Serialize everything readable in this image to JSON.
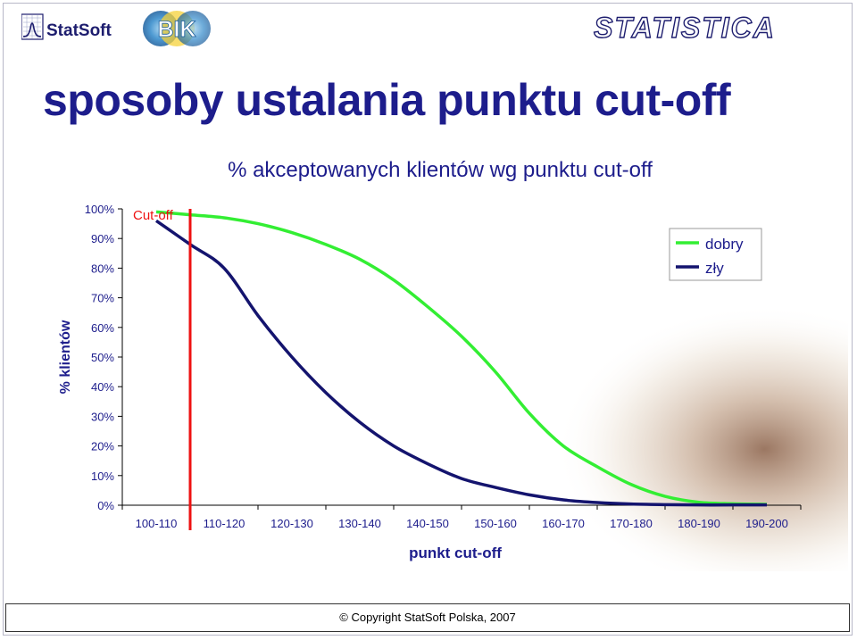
{
  "header": {
    "statsoft_logo": "StatSoft",
    "bik_logo": "BIK",
    "statistica_logo": "STATISTICA"
  },
  "slide_title": "sposoby ustalania punktu cut-off",
  "footer": {
    "copyright": "© Copyright StatSoft Polska, 2007"
  },
  "colors": {
    "good": "#33ee33",
    "bad": "#14146e",
    "cutoff": "#ee1111",
    "title": "#1d1d8c"
  },
  "chart_data": {
    "type": "line",
    "title": "% akceptowanych klientów wg punktu cut-off",
    "xlabel": "punkt cut-off",
    "ylabel": "% klientów",
    "categories": [
      "100-110",
      "110-120",
      "120-130",
      "130-140",
      "140-150",
      "150-160",
      "160-170",
      "170-180",
      "180-190",
      "190-200"
    ],
    "yticks": [
      "0%",
      "10%",
      "20%",
      "30%",
      "40%",
      "50%",
      "60%",
      "70%",
      "80%",
      "90%",
      "100%"
    ],
    "ylim": [
      0,
      100
    ],
    "x": [
      0,
      0.5,
      1,
      1.5,
      2,
      2.5,
      3,
      3.5,
      4,
      4.5,
      5,
      5.5,
      6,
      6.5,
      7,
      7.5,
      8,
      8.5,
      9
    ],
    "series": [
      {
        "name": "dobry",
        "values": [
          99,
          98,
          97,
          95,
          92,
          88,
          83,
          76,
          67,
          57,
          45,
          31,
          20,
          13,
          7,
          3,
          1,
          0.5,
          0.3
        ]
      },
      {
        "name": "zły",
        "values": [
          96,
          88,
          80,
          64,
          50,
          38,
          28,
          20,
          14,
          9,
          6,
          3.5,
          1.8,
          0.9,
          0.4,
          0.2,
          0.1,
          0.1,
          0.1
        ]
      }
    ],
    "cutoff": {
      "label": "Cut-off",
      "x": 0.5
    },
    "legend_position": "top-right",
    "grid": false
  }
}
